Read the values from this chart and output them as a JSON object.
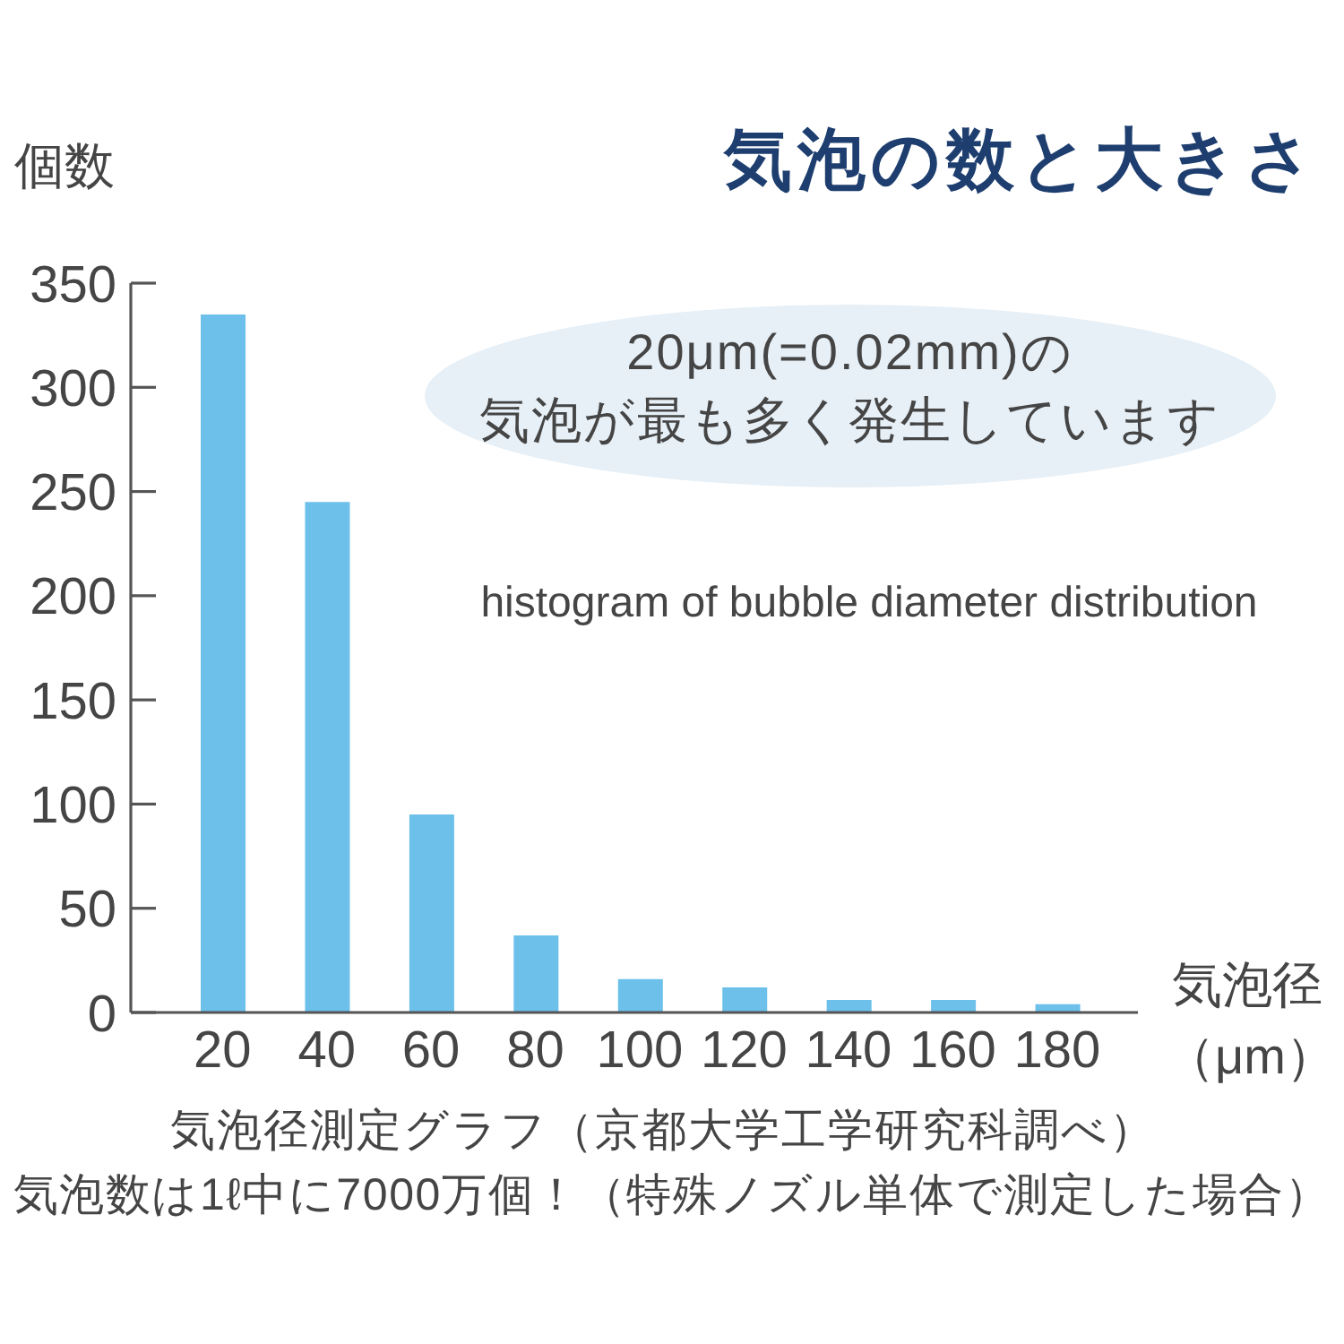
{
  "chart_data": {
    "type": "bar",
    "title": "気泡の数と大きさ",
    "ylabel": "個数",
    "xlabel": "気泡径（μm）",
    "categories": [
      "20",
      "40",
      "60",
      "80",
      "100",
      "120",
      "140",
      "160",
      "180"
    ],
    "values": [
      335,
      245,
      95,
      37,
      16,
      12,
      6,
      6,
      4
    ],
    "color": "#6cc0ea",
    "ylim": [
      0,
      350
    ],
    "yticks": [
      0,
      50,
      100,
      150,
      200,
      250,
      300,
      350
    ],
    "annotations": [
      "20μm(=0.02mm)の",
      "気泡が最も多く発生しています",
      "histogram of bubble diameter distribution",
      "気泡径測定グラフ（京都大学工学研究科調べ）",
      "気泡数は1ℓ中に7000万個！（特殊ノズル単体で測定した場合）"
    ]
  }
}
